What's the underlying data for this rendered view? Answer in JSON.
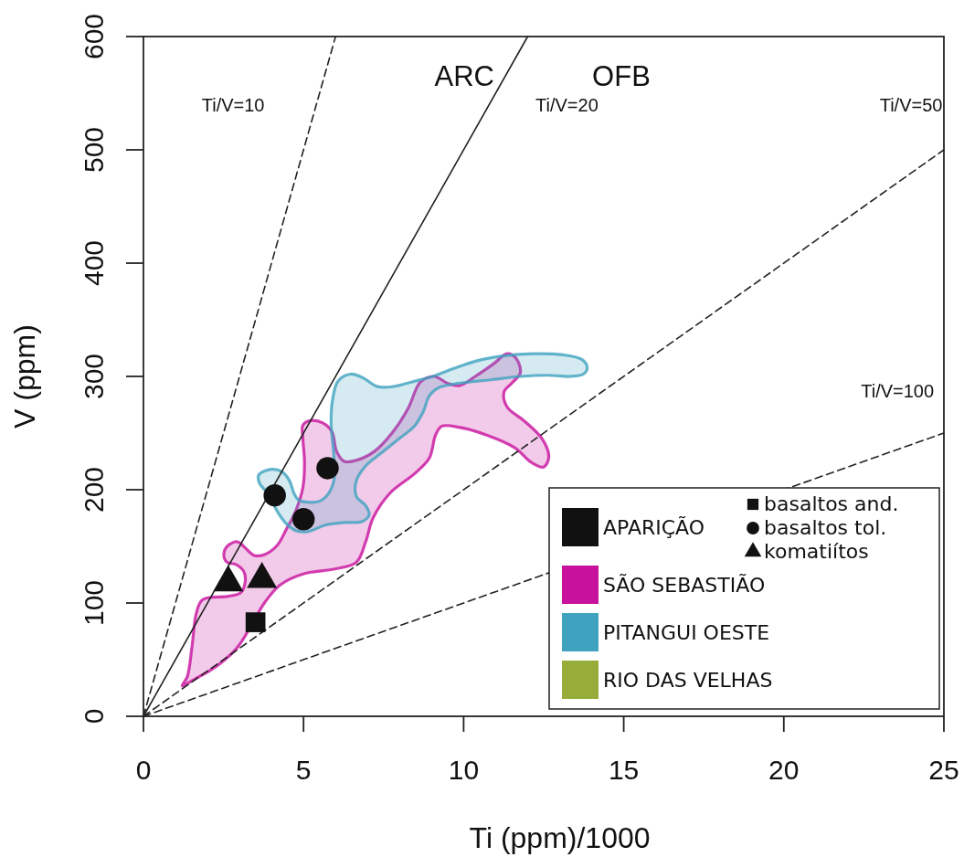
{
  "chart_data": {
    "type": "scatter",
    "xlabel": "Ti (ppm)/1000",
    "ylabel": "V (ppm)",
    "xlim": [
      0,
      25
    ],
    "ylim": [
      0,
      600
    ],
    "xticks": [
      0,
      5,
      10,
      15,
      20,
      25
    ],
    "yticks": [
      0,
      100,
      200,
      300,
      400,
      500,
      600
    ],
    "legend": "bottom right",
    "annotations": [
      "ARC",
      "OFB",
      "Ti/V=10",
      "Ti/V=20",
      "Ti/V=50",
      "Ti/V=100"
    ],
    "series": [
      {
        "name": "APARIÇÃO",
        "color": "#111111"
      },
      {
        "name": "SÃO SEBASTIÃO",
        "type": "area",
        "color": "#c8129e",
        "x": [
          1.21,
          1.37,
          1.51,
          1.66,
          1.85,
          2.65,
          3.03,
          3.18,
          3.13,
          2.89,
          2.61,
          2.51,
          2.65,
          2.94,
          3.13,
          3.46,
          3.8,
          4.18,
          4.46,
          4.75,
          4.98,
          5.03,
          4.98,
          4.98,
          5.22,
          5.6,
          5.89,
          6.03,
          6.27,
          6.65,
          7.22,
          7.79,
          8.27,
          8.65,
          9.08,
          9.5,
          9.88,
          10.36,
          10.93,
          11.36,
          11.64,
          11.77,
          11.5,
          11.26,
          11.36,
          11.88,
          12.45,
          12.66,
          12.5,
          12.12,
          11.6,
          10.74,
          9.88,
          9.31,
          9.12,
          8.93,
          8.46,
          7.7,
          7.17,
          6.94,
          6.65,
          5.98,
          5.03,
          4.27,
          3.8,
          2.94,
          2.27,
          1.61
        ],
        "values": [
          27,
          35,
          60,
          92,
          103,
          106,
          109,
          119,
          128,
          134,
          136,
          143,
          151,
          154,
          150,
          142,
          143,
          151,
          165,
          181,
          202,
          224,
          245,
          257,
          261,
          259,
          251,
          234,
          225,
          226,
          234,
          251,
          272,
          295,
          300,
          294,
          292,
          300,
          311,
          320,
          316,
          303,
          294,
          286,
          273,
          261,
          245,
          229,
          220,
          224,
          237,
          248,
          255,
          256,
          248,
          228,
          214,
          197,
          175,
          154,
          136,
          130,
          126,
          116,
          101,
          61,
          44,
          33
        ]
      },
      {
        "name": "PITANGUI OESTE",
        "type": "area",
        "color": "#3fa3bf",
        "x": [
          3.6,
          3.99,
          4.32,
          4.56,
          4.7,
          4.84,
          5.13,
          5.51,
          5.79,
          5.96,
          5.94,
          5.86,
          5.91,
          6.08,
          6.46,
          6.84,
          7.31,
          7.79,
          8.36,
          9.03,
          9.69,
          10.45,
          11.22,
          12.17,
          13.12,
          13.69,
          13.86,
          13.74,
          13.31,
          12.64,
          11.79,
          10.84,
          9.88,
          9.22,
          8.93,
          8.74,
          8.46,
          7.98,
          7.41,
          6.94,
          6.65,
          6.65,
          6.94,
          7.05,
          6.84,
          6.27,
          5.7,
          5.13,
          4.75,
          4.46,
          4.22,
          3.84,
          3.62
        ],
        "values": [
          213,
          218,
          216,
          208,
          197,
          191,
          189,
          190,
          197,
          210,
          232,
          259,
          280,
          296,
          302,
          299,
          291,
          291,
          295,
          300,
          307,
          314,
          318,
          320,
          319,
          315,
          308,
          302,
          300,
          301,
          300,
          297,
          294,
          290,
          283,
          269,
          256,
          245,
          232,
          221,
          208,
          194,
          186,
          178,
          172,
          171,
          169,
          163,
          164,
          170,
          179,
          198,
          206
        ]
      },
      {
        "name": "RIO DAS VELHAS",
        "color": "#97ad3a"
      },
      {
        "type": "line",
        "color": "#222222",
        "line_style": "dashed",
        "x": [
          0,
          6
        ],
        "values": [
          0,
          600
        ]
      },
      {
        "type": "line",
        "color": "#222222",
        "line_style": "solid",
        "x": [
          0,
          12
        ],
        "values": [
          0,
          600
        ]
      },
      {
        "type": "line",
        "color": "#222222",
        "line_style": "dashed",
        "x": [
          0,
          25
        ],
        "values": [
          0,
          500
        ]
      },
      {
        "type": "line",
        "color": "#222222",
        "line_style": "dashed",
        "x": [
          0,
          25
        ],
        "values": [
          0,
          250
        ]
      },
      {
        "name": "basaltos and.",
        "color": "#111111",
        "marker": "square",
        "x": [
          3.5
        ],
        "values": [
          83
        ]
      },
      {
        "name": "basaltos tol.",
        "color": "#111111",
        "marker": "circle",
        "x": [
          4.1,
          5.0,
          5.75
        ],
        "values": [
          195,
          174,
          219
        ]
      },
      {
        "name": "komatiítos",
        "color": "#111111",
        "marker": "triangle",
        "x": [
          2.65,
          3.7
        ],
        "values": [
          118,
          121
        ]
      }
    ]
  }
}
